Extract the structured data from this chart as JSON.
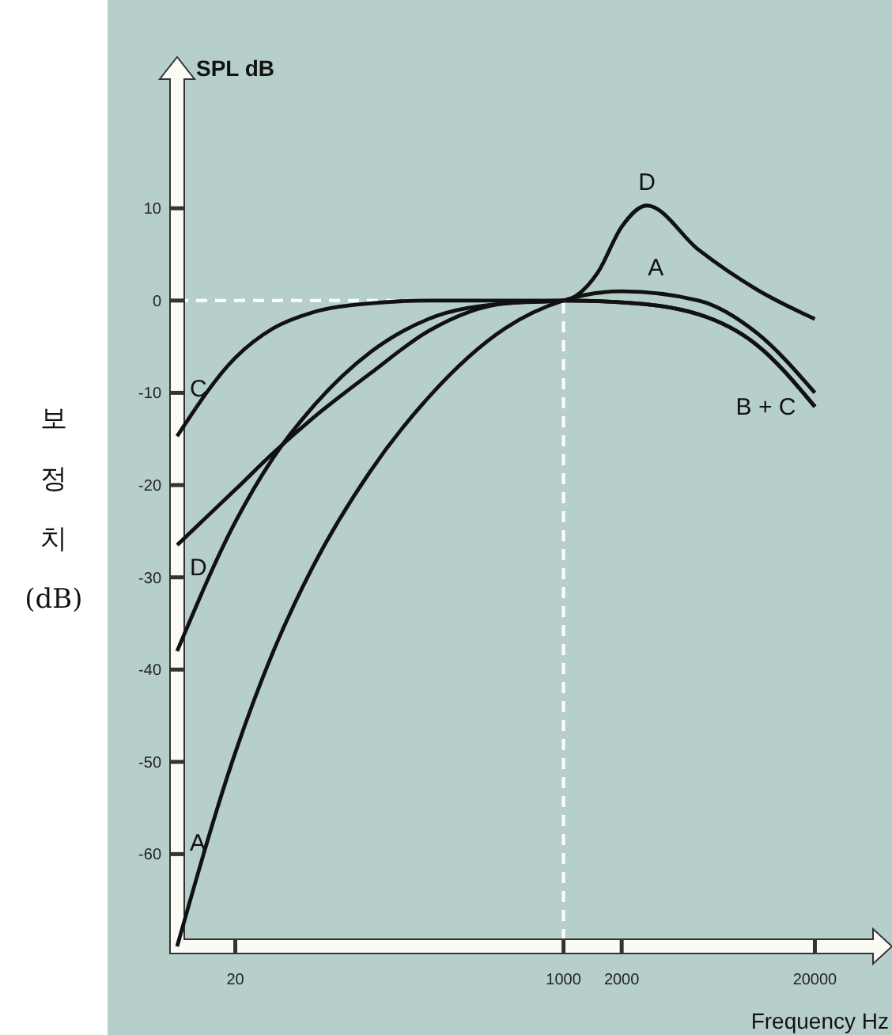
{
  "chart_data": {
    "type": "line",
    "ylabel": "SPL dB",
    "xlabel": "Frequency Hz",
    "log": "x",
    "xlim": [
      10,
      40000
    ],
    "ylim": [
      -70,
      24
    ],
    "xticks": [
      20,
      1000,
      2000,
      20000
    ],
    "yticks": [
      10,
      0,
      -10,
      -20,
      -30,
      -40,
      -50,
      -60
    ],
    "series": [
      {
        "color": "#111111",
        "x": [
          10,
          20,
          31.5,
          50,
          100,
          200,
          500,
          1000,
          2000,
          5000,
          10000,
          20000
        ],
        "values": [
          -70,
          -49,
          -38,
          -29,
          -18.5,
          -10.5,
          -3,
          0,
          1,
          0,
          -3.5,
          -10
        ]
      },
      {
        "color": "#111111",
        "x": [
          10,
          20,
          31.5,
          50,
          100,
          200,
          500,
          1000,
          2000,
          5000,
          10000,
          20000
        ],
        "values": [
          -38,
          -24,
          -17,
          -11.6,
          -5.6,
          -2,
          -0.3,
          0,
          -0.2,
          -1.5,
          -4.8,
          -11.5
        ]
      },
      {
        "color": "#111111",
        "x": [
          10,
          20,
          31.5,
          50,
          100,
          200,
          500,
          1000,
          2000,
          5000,
          10000,
          20000
        ],
        "values": [
          -14.7,
          -6.2,
          -3,
          -1.3,
          -0.3,
          0,
          0,
          0,
          -0.2,
          -1.5,
          -4.8,
          -11.5
        ]
      },
      {
        "color": "#111111",
        "x": [
          10,
          20,
          31.5,
          50,
          100,
          200,
          500,
          1000,
          1500,
          2000,
          2700,
          5000,
          10000,
          20000
        ],
        "values": [
          -26.5,
          -20.5,
          -16.5,
          -12.8,
          -7.9,
          -3.3,
          -0.3,
          0,
          3,
          8,
          10.3,
          5.5,
          1.2,
          -2
        ]
      }
    ],
    "ref_lines": [
      {
        "axis": "y",
        "value": 0,
        "color": "#ffffff",
        "line_style": "dashed"
      },
      {
        "axis": "x",
        "value": 1000,
        "color": "#ffffff",
        "line_style": "dashed"
      }
    ],
    "annotations": [
      "C",
      "D",
      "A",
      {
        "text": "D",
        "x": 2700,
        "y": 10.3
      },
      {
        "text": "A",
        "x": 3000,
        "y": 1
      },
      {
        "text": "B + C",
        "x": 20000,
        "y": -11.5
      },
      "보정치(dB)"
    ]
  }
}
